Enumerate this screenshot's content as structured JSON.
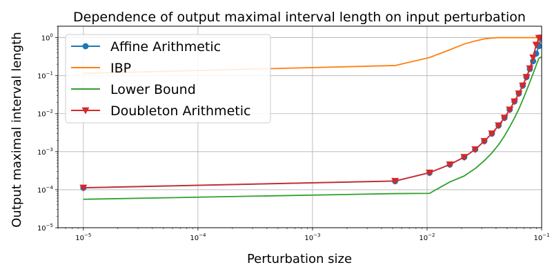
{
  "chart_data": {
    "type": "line",
    "title": "Dependence of output maximal interval length on input perturbation",
    "xlabel": "Perturbation size",
    "ylabel": "Output maximal interval length",
    "xscale": "log",
    "yscale": "log",
    "xlim": [
      6e-06,
      0.1
    ],
    "ylim": [
      1e-05,
      2
    ],
    "grid": true,
    "legend_position": "top-left",
    "x_ticks": [
      {
        "base": "10",
        "exp": "−5",
        "value": 1e-05
      },
      {
        "base": "10",
        "exp": "−4",
        "value": 0.0001
      },
      {
        "base": "10",
        "exp": "−3",
        "value": 0.001
      },
      {
        "base": "10",
        "exp": "−2",
        "value": 0.01
      },
      {
        "base": "10",
        "exp": "−1",
        "value": 0.1
      }
    ],
    "y_ticks": [
      {
        "base": "10",
        "exp": "−5",
        "value": 1e-05
      },
      {
        "base": "10",
        "exp": "−4",
        "value": 0.0001
      },
      {
        "base": "10",
        "exp": "−3",
        "value": 0.001
      },
      {
        "base": "10",
        "exp": "−2",
        "value": 0.01
      },
      {
        "base": "10",
        "exp": "−1",
        "value": 0.1
      },
      {
        "base": "10",
        "exp": "0",
        "value": 1
      }
    ],
    "series": [
      {
        "name": "Affine Arithmetic",
        "color": "#1f77b4",
        "marker": "circle",
        "x": [
          1e-05,
          0.00526,
          0.0105,
          0.0158,
          0.0211,
          0.0263,
          0.0316,
          0.0368,
          0.0421,
          0.0474,
          0.0526,
          0.0579,
          0.0632,
          0.0684,
          0.0737,
          0.0789,
          0.0842,
          0.0895,
          0.0947,
          0.1
        ],
        "y": [
          0.000112,
          0.000168,
          0.00028,
          0.00046,
          0.00072,
          0.00115,
          0.0019,
          0.003,
          0.0049,
          0.0078,
          0.0128,
          0.021,
          0.034,
          0.055,
          0.092,
          0.15,
          0.24,
          0.38,
          0.6,
          0.98
        ]
      },
      {
        "name": "IBP",
        "color": "#ff7f0e",
        "marker": "none",
        "x": [
          1e-05,
          0.00526,
          0.0105,
          0.0158,
          0.0211,
          0.0263,
          0.0316,
          0.0368,
          0.0421,
          0.0474,
          0.0526,
          0.0579,
          0.0632,
          0.0684,
          0.0737,
          0.0789,
          0.0842,
          0.0895,
          0.0947,
          0.1
        ],
        "y": [
          0.115,
          0.185,
          0.3,
          0.48,
          0.68,
          0.82,
          0.93,
          0.98,
          1.0,
          1.0,
          1.0,
          1.0,
          1.0,
          1.0,
          1.0,
          1.0,
          1.0,
          1.0,
          1.0,
          1.0
        ]
      },
      {
        "name": "Lower Bound",
        "color": "#2ca02c",
        "marker": "none",
        "x": [
          1e-05,
          0.00526,
          0.0105,
          0.0158,
          0.0211,
          0.0263,
          0.0316,
          0.0368,
          0.0421,
          0.0474,
          0.0526,
          0.0579,
          0.0632,
          0.0684,
          0.0737,
          0.0789,
          0.0842,
          0.0895,
          0.0947,
          0.1
        ],
        "y": [
          5.6e-05,
          7.9e-05,
          8e-05,
          0.00016,
          0.00023,
          0.00036,
          0.00058,
          0.00093,
          0.00153,
          0.0026,
          0.0045,
          0.0077,
          0.0132,
          0.023,
          0.04,
          0.068,
          0.114,
          0.185,
          0.29,
          0.31
        ]
      },
      {
        "name": "Doubleton Arithmetic",
        "color": "#d62728",
        "marker": "triangle-down",
        "x": [
          1e-05,
          0.00526,
          0.0105,
          0.0158,
          0.0211,
          0.0263,
          0.0316,
          0.0368,
          0.0421,
          0.0474,
          0.0526,
          0.0579,
          0.0632,
          0.0684,
          0.0737,
          0.0789,
          0.0842,
          0.0895,
          0.0947,
          0.1
        ],
        "y": [
          0.000113,
          0.00017,
          0.00028,
          0.00046,
          0.00072,
          0.00115,
          0.0019,
          0.003,
          0.0049,
          0.0078,
          0.0128,
          0.021,
          0.034,
          0.055,
          0.092,
          0.155,
          0.3,
          0.65,
          0.98,
          1.0
        ]
      }
    ]
  }
}
